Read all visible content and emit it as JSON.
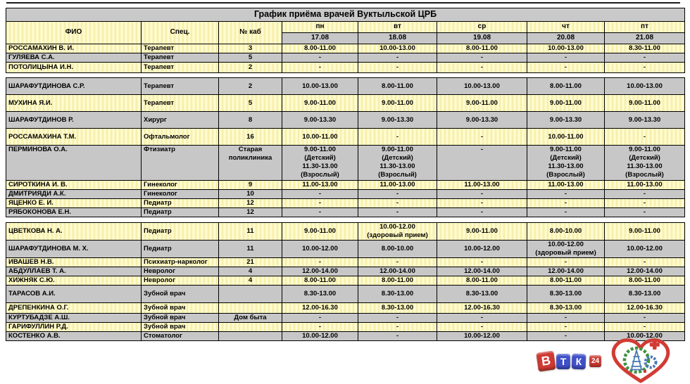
{
  "title": "График приёма врачей Вуктыльской ЦРБ",
  "columns": {
    "fio": "ФИО",
    "spec": "Спец.",
    "kab": "№ каб"
  },
  "days": [
    {
      "name": "пн",
      "date": "17.08"
    },
    {
      "name": "вт",
      "date": "18.08"
    },
    {
      "name": "ср",
      "date": "19.08"
    },
    {
      "name": "чт",
      "date": "20.08"
    },
    {
      "name": "пт",
      "date": "21.08"
    }
  ],
  "rows": [
    {
      "fio": "РОССАМАХИН В. И.",
      "spec": "Терапевт",
      "kab": "3",
      "times": [
        "8.00-11.00",
        "10.00-13.00",
        "8.00-11.00",
        "10.00-13.00",
        "8.30-11.00"
      ]
    },
    {
      "fio": "ГУЛЯЕВА С.А.",
      "spec": "Терапевт",
      "kab": "5",
      "times": [
        "-",
        "-",
        "-",
        "-",
        "-"
      ]
    },
    {
      "fio": "ПОТОЛИЦЫНА И.Н.",
      "spec": "Терапевт",
      "kab": "2",
      "times": [
        "-",
        "-",
        "-",
        "-",
        "-"
      ]
    },
    {
      "spacer": true
    },
    {
      "fio": "ШАРАФУТДИНОВА С.Р.",
      "spec": "Терапевт",
      "kab": "2",
      "times": [
        "10.00-13.00",
        "8.00-11.00",
        "10.00-13.00",
        "8.00-11.00",
        "10.00-13.00"
      ]
    },
    {
      "fio": "МУХИНА Я.И.",
      "spec": "Терапевт",
      "kab": "5",
      "times": [
        "9.00-11.00",
        "9.00-11.00",
        "9.00-11.00",
        "9.00-11.00",
        "9.00-11.00"
      ]
    },
    {
      "fio": "ШАРАФУТДИНОВ Р.",
      "spec": "Хирург",
      "kab": "8",
      "times": [
        "9.00-13.30",
        "9.00-13.30",
        "9.00-13.30",
        "9.00-13.30",
        "9.00-13.30"
      ]
    },
    {
      "fio": "РОССАМАХИНА Т.М.",
      "spec": "Офтальмолог",
      "kab": "16",
      "times": [
        "10.00-11.00",
        "-",
        "-",
        "10.00-11.00",
        "-"
      ]
    },
    {
      "fio": "ПЕРМИНОВА О.А.",
      "spec": "Фтизиатр",
      "kab": "Старая\nполиклиника",
      "times": [
        "9.00-11.00\n(Детский)\n11.30-13.00\n(Взрослый)",
        "9.00-11.00\n(Детский)\n11.30-13.00\n(Взрослый)",
        "-",
        "9.00-11.00\n(Детский)\n11.30-13.00\n(Взрослый)",
        "9.00-11.00\n(Детский)\n11.30-13.00\n(Взрослый)"
      ]
    },
    {
      "fio": "СИРОТКИНА И. В.",
      "spec": "Гинеколог",
      "kab": "9",
      "times": [
        "11.00-13.00",
        "11.00-13.00",
        "11.00-13.00",
        "11.00-13.00",
        "11.00-13.00"
      ]
    },
    {
      "fio": "ДМИТРИЯДИ А.К.",
      "spec": "Гинеколог",
      "kab": "10",
      "times": [
        "-",
        "-",
        "-",
        "-",
        "-"
      ]
    },
    {
      "fio": "ЯЦЕНКО Е. И.",
      "spec": "Педиатр",
      "kab": "12",
      "times": [
        "-",
        "-",
        "-",
        "-",
        "-"
      ]
    },
    {
      "fio": "РЯБОКОНОВА Е.Н.",
      "spec": "Педиатр",
      "kab": "12",
      "times": [
        "-",
        "-",
        "-",
        "-",
        "-"
      ]
    },
    {
      "spacer": true
    },
    {
      "fio": "ЦВЕТКОВА Н. А.",
      "spec": "Педиатр",
      "kab": "11",
      "times": [
        "9.00-11.00",
        "10.00-12.00\n(здоровый прием)",
        "9.00-11.00",
        "8.00-10.00",
        "9.00-11.00"
      ]
    },
    {
      "fio": "ШАРАФУТДИНОВА М. Х.",
      "spec": "Педиатр",
      "kab": "11",
      "times": [
        "10.00-12.00",
        "8.00-10.00",
        "10.00-12.00",
        "10.00-12.00\n(здоровый прием)",
        "10.00-12.00"
      ]
    },
    {
      "fio": "ИВАШЕВ Н.В.",
      "spec": "Психиатр-нарколог",
      "kab": "21",
      "times": [
        "-",
        "-",
        "-",
        "-",
        "-"
      ]
    },
    {
      "fio": "АБДУЛЛАЕВ Т. А.",
      "spec": "Невролог",
      "kab": "4",
      "times": [
        "12.00-14.00",
        "12.00-14.00",
        "12.00-14.00",
        "12.00-14.00",
        "12.00-14.00"
      ]
    },
    {
      "fio": "ХИЖНЯК С.Ю.",
      "spec": "Невролог",
      "kab": "4",
      "times": [
        "8.00-11.00",
        "8.00-11.00",
        "8.00-11.00",
        "8.00-11.00",
        "8.00-11.00"
      ]
    },
    {
      "fio": "ТАРАСОВ А.И.",
      "spec": "Зубной врач",
      "kab": "",
      "times": [
        "8.30-13.00",
        "8.30-13.00",
        "8.30-13.00",
        "8.30-13.00",
        "8.30-13.00"
      ]
    },
    {
      "fio": "ДРЕПЕНКИНА О.Г.",
      "spec": "Зубной врач",
      "kab": "",
      "times": [
        "12.00-16.30",
        "8.30-13.00",
        "12.00-16.30",
        "8.30-13.00",
        "12.00-16.30"
      ]
    },
    {
      "fio": "КУРТУБАДЗЕ А.Ш.",
      "spec": "Зубной врач",
      "kab": "Дом быта",
      "times": [
        "-",
        "-",
        "-",
        "-",
        "-"
      ]
    },
    {
      "fio": "ГАРИФУЛЛИН Р.Д.",
      "spec": "Зубной врач",
      "kab": "",
      "times": [
        "-",
        "-",
        "-",
        "-",
        "-"
      ]
    },
    {
      "fio": "КОСТЕНКО А.В.",
      "spec": "Стоматолог",
      "kab": "",
      "times": [
        "10.00-12.00",
        "-",
        "10.00-12.00",
        "-",
        "10.00-12.00"
      ]
    }
  ],
  "logos": {
    "btk24": {
      "letters": [
        "В",
        "Т",
        "К"
      ],
      "badge": "24"
    },
    "heart_emblem": "hospital-heart-emblem"
  },
  "colors": {
    "row_yellow": "#fffcd2",
    "row_gray": "#c7c7c7",
    "border": "#000000",
    "logo_red": "#cf3a33",
    "logo_blue": "#4050c8",
    "wreath_green": "#3f9140",
    "derrick_blue": "#4a7ab5"
  }
}
